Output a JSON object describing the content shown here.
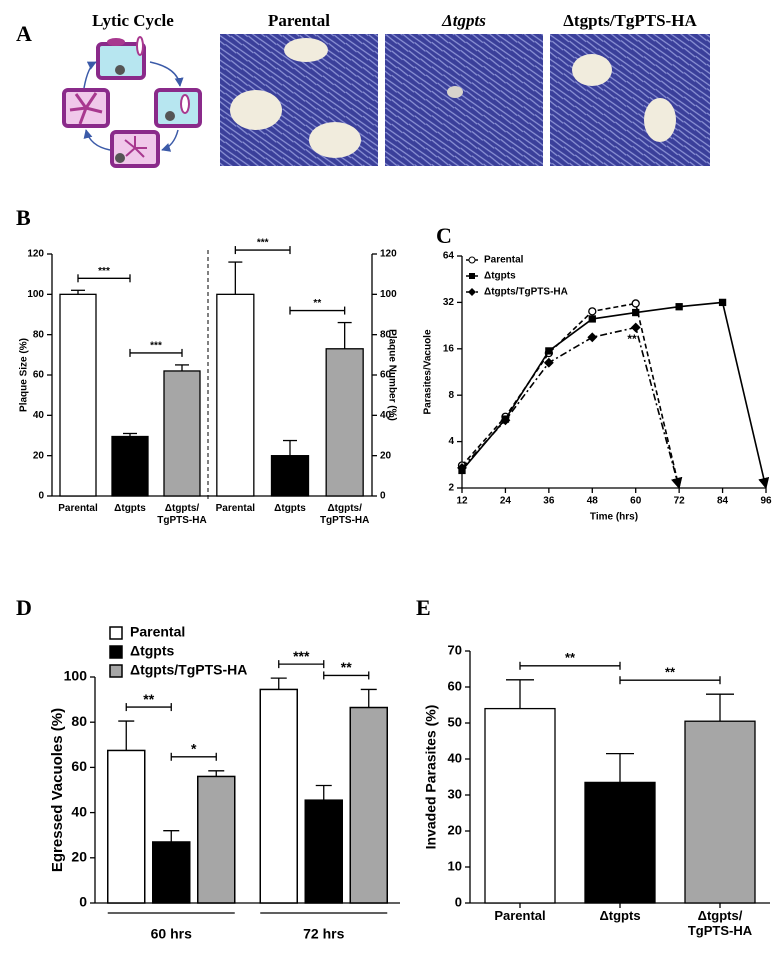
{
  "panels": {
    "a": "A",
    "b": "B",
    "c": "C",
    "d": "D",
    "e": "E"
  },
  "panel_a": {
    "diagram_title": "Lytic Cycle",
    "image_titles": [
      "Parental",
      "Δtgpts",
      "Δtgpts/TgPTS-HA"
    ]
  },
  "chart_data": [
    {
      "type": "bar",
      "ylabel": "Plaque Size (%)",
      "categories": [
        "Parental",
        "Δtgpts",
        "Δtgpts/TgPTS-HA"
      ],
      "values": [
        100,
        29.5,
        62
      ],
      "errors": [
        2,
        1.5,
        3
      ],
      "colors": [
        "#ffffff",
        "#000000",
        "#a6a6a6"
      ],
      "ylim": [
        0,
        120
      ],
      "yticks": [
        0,
        20,
        40,
        60,
        80,
        100,
        120
      ],
      "significance": [
        "***",
        "***"
      ]
    },
    {
      "type": "bar",
      "ylabel": "Plaque Number (%)",
      "categories": [
        "Parental",
        "Δtgpts",
        "Δtgpts/TgPTS-HA"
      ],
      "values": [
        100,
        20,
        73
      ],
      "errors": [
        16,
        7.5,
        13
      ],
      "colors": [
        "#ffffff",
        "#000000",
        "#a6a6a6"
      ],
      "ylim": [
        0,
        120
      ],
      "yticks": [
        0,
        20,
        40,
        60,
        80,
        100,
        120
      ],
      "significance": [
        "***",
        "**"
      ]
    },
    {
      "type": "line",
      "xlabel": "Time (hrs)",
      "ylabel": "Parasites/Vacuole",
      "ylog": true,
      "x": [
        12,
        24,
        36,
        48,
        60,
        72,
        84,
        96
      ],
      "xlim": [
        12,
        96
      ],
      "xticks": [
        12,
        24,
        36,
        48,
        60,
        72,
        84,
        96
      ],
      "ylim": [
        2,
        64
      ],
      "yticks": [
        2,
        4,
        8,
        16,
        32,
        64
      ],
      "series": [
        {
          "name": "Parental",
          "color": "#000000",
          "line_style": "dashed",
          "marker": "circle-open",
          "values": [
            2.8,
            5.8,
            15,
            28,
            31.5,
            2,
            null,
            null
          ]
        },
        {
          "name": "Δtgpts",
          "color": "#000000",
          "line_style": "solid",
          "marker": "square",
          "values": [
            2.6,
            5.6,
            15.5,
            25,
            27.5,
            30,
            32,
            2
          ]
        },
        {
          "name": "Δtgpts/TgPTS-HA",
          "color": "#000000",
          "line_style": "dashdot",
          "marker": "diamond",
          "values": [
            2.7,
            5.5,
            13,
            19,
            22,
            2,
            null,
            null
          ]
        }
      ],
      "significance": [
        "**"
      ]
    },
    {
      "type": "bar",
      "ylabel": "Egressed Vacuoles (%)",
      "categories": [
        "60 hrs",
        "72 hrs"
      ],
      "ylim": [
        0,
        100
      ],
      "yticks": [
        0,
        20,
        40,
        60,
        80,
        100
      ],
      "series": [
        {
          "name": "Parental",
          "color": "#ffffff",
          "values": [
            67.5,
            94.5
          ],
          "errors": [
            13,
            5
          ]
        },
        {
          "name": "Δtgpts",
          "color": "#000000",
          "values": [
            27,
            45.5
          ],
          "errors": [
            5,
            6.5
          ]
        },
        {
          "name": "Δtgpts/TgPTS-HA",
          "color": "#a6a6a6",
          "values": [
            56,
            86.5
          ],
          "errors": [
            2.5,
            8
          ]
        }
      ],
      "significance": [
        "**",
        "*",
        "***",
        "**"
      ]
    },
    {
      "type": "bar",
      "ylabel": "Invaded Parasites (%)",
      "categories": [
        "Parental",
        "Δtgpts",
        "Δtgpts/TgPTS-HA"
      ],
      "values": [
        54,
        33.5,
        50.5
      ],
      "errors": [
        8,
        8,
        7.5
      ],
      "colors": [
        "#ffffff",
        "#000000",
        "#a6a6a6"
      ],
      "ylim": [
        0,
        70
      ],
      "yticks": [
        0,
        10,
        20,
        30,
        40,
        50,
        60,
        70
      ],
      "significance": [
        "**",
        "**"
      ]
    }
  ]
}
